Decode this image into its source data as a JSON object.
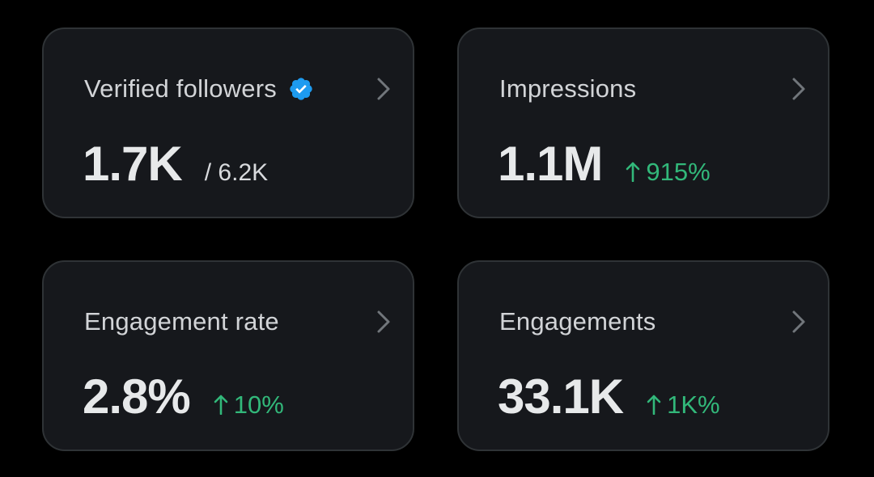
{
  "colors": {
    "background": "#000000",
    "card_background": "#16181c",
    "card_border": "#2f3336",
    "verified_badge": "#1d9bf0",
    "positive_change": "#32b87a"
  },
  "cards": [
    {
      "title": "Verified followers",
      "title_icon": "verified-badge-icon",
      "value": "1.7K",
      "secondary": "/ 6.2K",
      "action_icon": "chevron-right-icon"
    },
    {
      "title": "Impressions",
      "value": "1.1M",
      "change": "915%",
      "change_icon": "arrow-up-icon",
      "action_icon": "chevron-right-icon"
    },
    {
      "title": "Engagement rate",
      "value": "2.8%",
      "change": "10%",
      "change_icon": "arrow-up-icon",
      "action_icon": "chevron-right-icon"
    },
    {
      "title": "Engagements",
      "value": "33.1K",
      "change": "1K%",
      "change_icon": "arrow-up-icon",
      "action_icon": "chevron-right-icon"
    }
  ]
}
